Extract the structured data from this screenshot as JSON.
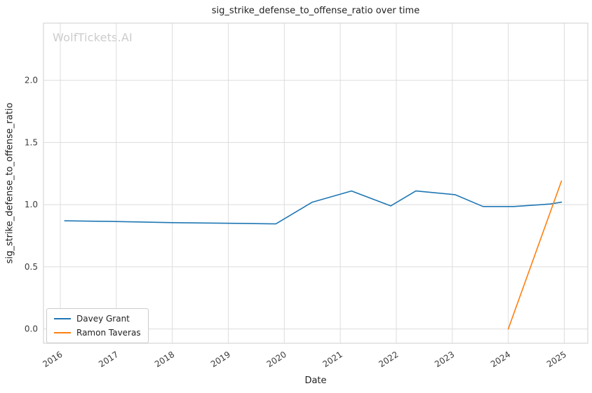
{
  "chart_data": {
    "type": "line",
    "title": "sig_strike_defense_to_offense_ratio over time",
    "xlabel": "Date",
    "ylabel": "sig_strike_defense_to_offense_ratio",
    "watermark": "WolfTickets.AI",
    "xlim": [
      2015.7,
      2025.42
    ],
    "ylim": [
      -0.115,
      2.46
    ],
    "xticks": [
      2016,
      2017,
      2018,
      2019,
      2020,
      2021,
      2022,
      2023,
      2024,
      2025
    ],
    "yticks": [
      0.0,
      0.5,
      1.0,
      1.5,
      2.0
    ],
    "grid": true,
    "legend_position": "lower left",
    "colors": {
      "grid": "#dddddd",
      "frame": "#cfcfcf",
      "tick_text": "#3b3b3b"
    },
    "series": [
      {
        "name": "Davey Grant",
        "color": "#1f77b4",
        "points": [
          [
            2016.08,
            0.87
          ],
          [
            2016.9,
            0.865
          ],
          [
            2018.0,
            0.855
          ],
          [
            2019.0,
            0.85
          ],
          [
            2019.85,
            0.845
          ],
          [
            2020.5,
            1.02
          ],
          [
            2021.2,
            1.11
          ],
          [
            2021.9,
            0.99
          ],
          [
            2022.35,
            1.11
          ],
          [
            2023.05,
            1.08
          ],
          [
            2023.55,
            0.985
          ],
          [
            2024.1,
            0.985
          ],
          [
            2024.75,
            1.005
          ],
          [
            2024.95,
            1.02
          ]
        ]
      },
      {
        "name": "Ramon Taveras",
        "color": "#ff7f0e",
        "points": [
          [
            2024.0,
            0.0
          ],
          [
            2024.95,
            1.19
          ]
        ]
      }
    ]
  }
}
